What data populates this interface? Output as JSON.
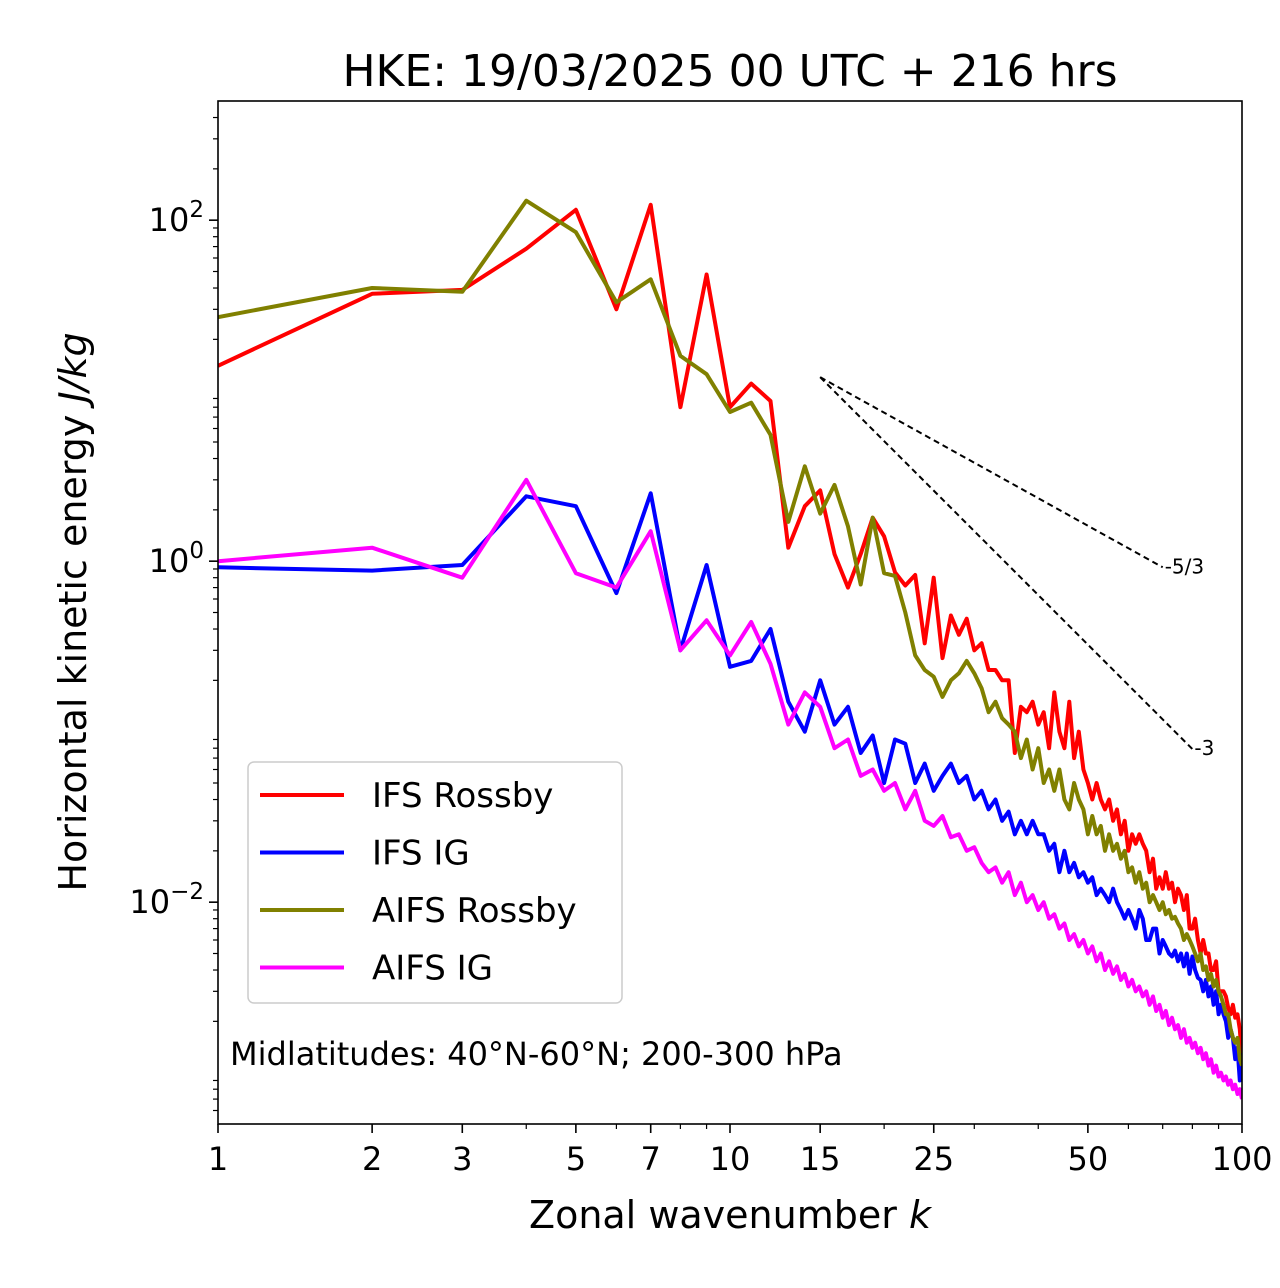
{
  "chart_data": {
    "type": "line",
    "title": "HKE: 19/03/2025 00 UTC + 216 hrs",
    "xlabel": "Zonal wavenumber",
    "xlabel_var": "k",
    "ylabel": "Horizontal kinetic energy",
    "ylabel_unit": "J/kg",
    "x_scale": "log",
    "y_scale": "log",
    "xlim": [
      1,
      100
    ],
    "ylim": [
      0.0005,
      500
    ],
    "x_ticks": [
      1,
      2,
      3,
      5,
      7,
      10,
      15,
      25,
      50,
      100
    ],
    "x_tick_labels": [
      "1",
      "2",
      "3",
      "5",
      "7",
      "10",
      "15",
      "25",
      "50",
      "100"
    ],
    "y_ticks": [
      {
        "value": 100,
        "base": "10",
        "exp": "2"
      },
      {
        "value": 1,
        "base": "10",
        "exp": "0"
      },
      {
        "value": 0.01,
        "base": "10",
        "exp": "−2"
      }
    ],
    "grid": false,
    "legend_position": "lower-left",
    "annotation": "Midlatitudes: 40°N-60°N; 200-300 hPa",
    "reference_slopes": [
      {
        "label": "-5/3",
        "exponent": -1.6667,
        "x_start": 15,
        "x_end": 70,
        "y_start": 12
      },
      {
        "label": "-3",
        "exponent": -3,
        "x_start": 15,
        "x_end": 80,
        "y_start": 12
      }
    ],
    "x": [
      1,
      2,
      3,
      4,
      5,
      6,
      7,
      8,
      9,
      10,
      11,
      12,
      13,
      14,
      15,
      16,
      17,
      18,
      19,
      20,
      21,
      22,
      23,
      24,
      25,
      26,
      27,
      28,
      29,
      30,
      31,
      32,
      33,
      34,
      35,
      36,
      37,
      38,
      39,
      40,
      41,
      42,
      43,
      44,
      45,
      46,
      47,
      48,
      49,
      50,
      51,
      52,
      53,
      54,
      55,
      56,
      57,
      58,
      59,
      60,
      61,
      62,
      63,
      64,
      65,
      66,
      67,
      68,
      69,
      70,
      71,
      72,
      73,
      74,
      75,
      76,
      77,
      78,
      79,
      80,
      81,
      82,
      83,
      84,
      85,
      86,
      87,
      88,
      89,
      90,
      91,
      92,
      93,
      94,
      95,
      96,
      97,
      98,
      99,
      100
    ],
    "series": [
      {
        "name": "IFS Rossby",
        "color": "#ff0000",
        "values": [
          14,
          37,
          39,
          68,
          115,
          30,
          123,
          8,
          48,
          8,
          11,
          8.7,
          1.2,
          2.1,
          2.6,
          1.1,
          0.7,
          1.1,
          1.8,
          1.4,
          0.86,
          0.72,
          0.83,
          0.33,
          0.8,
          0.27,
          0.48,
          0.37,
          0.46,
          0.3,
          0.33,
          0.23,
          0.23,
          0.2,
          0.2,
          0.075,
          0.14,
          0.13,
          0.15,
          0.11,
          0.13,
          0.08,
          0.17,
          0.1,
          0.08,
          0.15,
          0.07,
          0.1,
          0.06,
          0.05,
          0.04,
          0.05,
          0.04,
          0.035,
          0.04,
          0.03,
          0.035,
          0.025,
          0.03,
          0.02,
          0.025,
          0.022,
          0.025,
          0.022,
          0.02,
          0.015,
          0.018,
          0.012,
          0.014,
          0.012,
          0.015,
          0.012,
          0.013,
          0.01,
          0.012,
          0.011,
          0.009,
          0.011,
          0.007,
          0.007,
          0.008,
          0.006,
          0.005,
          0.006,
          0.005,
          0.005,
          0.004,
          0.004,
          0.0045,
          0.003,
          0.003,
          0.003,
          0.0028,
          0.0024,
          0.0022,
          0.0025,
          0.0021,
          0.0022,
          0.0018,
          0.0012
        ]
      },
      {
        "name": "IFS IG",
        "color": "#0000ff",
        "values": [
          0.92,
          0.88,
          0.95,
          2.4,
          2.1,
          0.65,
          2.5,
          0.3,
          0.95,
          0.24,
          0.26,
          0.4,
          0.15,
          0.1,
          0.2,
          0.11,
          0.14,
          0.075,
          0.095,
          0.05,
          0.09,
          0.085,
          0.05,
          0.065,
          0.045,
          0.055,
          0.065,
          0.05,
          0.055,
          0.04,
          0.045,
          0.035,
          0.04,
          0.03,
          0.034,
          0.025,
          0.03,
          0.025,
          0.03,
          0.025,
          0.025,
          0.02,
          0.022,
          0.015,
          0.02,
          0.015,
          0.017,
          0.014,
          0.015,
          0.013,
          0.014,
          0.011,
          0.012,
          0.011,
          0.01,
          0.012,
          0.01,
          0.009,
          0.008,
          0.009,
          0.008,
          0.007,
          0.009,
          0.008,
          0.006,
          0.006,
          0.007,
          0.007,
          0.005,
          0.006,
          0.0055,
          0.005,
          0.0048,
          0.0052,
          0.0045,
          0.005,
          0.0042,
          0.005,
          0.0038,
          0.0048,
          0.004,
          0.0036,
          0.0035,
          0.003,
          0.0035,
          0.0028,
          0.0032,
          0.0025,
          0.003,
          0.0022,
          0.0025,
          0.0022,
          0.002,
          0.0016,
          0.0018,
          0.0016,
          0.0012,
          0.0014,
          0.0009,
          0.0013
        ]
      },
      {
        "name": "AIFS Rossby",
        "color": "#808000",
        "values": [
          27,
          40,
          38,
          130,
          85,
          33,
          45,
          16,
          12.5,
          7.5,
          8.5,
          5.5,
          1.7,
          3.6,
          1.9,
          2.8,
          1.6,
          0.73,
          1.8,
          0.85,
          0.82,
          0.5,
          0.28,
          0.23,
          0.21,
          0.16,
          0.2,
          0.22,
          0.26,
          0.22,
          0.18,
          0.13,
          0.15,
          0.12,
          0.11,
          0.1,
          0.07,
          0.09,
          0.06,
          0.08,
          0.05,
          0.06,
          0.045,
          0.06,
          0.04,
          0.035,
          0.05,
          0.04,
          0.035,
          0.025,
          0.032,
          0.025,
          0.028,
          0.02,
          0.025,
          0.02,
          0.022,
          0.018,
          0.02,
          0.015,
          0.016,
          0.013,
          0.015,
          0.012,
          0.013,
          0.01,
          0.011,
          0.01,
          0.009,
          0.01,
          0.0085,
          0.009,
          0.008,
          0.0082,
          0.0075,
          0.007,
          0.006,
          0.0065,
          0.006,
          0.0055,
          0.005,
          0.0045,
          0.005,
          0.004,
          0.0042,
          0.0035,
          0.0038,
          0.0032,
          0.0035,
          0.003,
          0.0028,
          0.0025,
          0.0022,
          0.0022,
          0.0018,
          0.0016,
          0.0015,
          0.0016,
          0.0012,
          0.0011
        ]
      },
      {
        "name": "AIFS IG",
        "color": "#ff00ff",
        "values": [
          1.0,
          1.2,
          0.8,
          3.0,
          0.85,
          0.7,
          1.5,
          0.3,
          0.45,
          0.28,
          0.44,
          0.25,
          0.11,
          0.17,
          0.14,
          0.08,
          0.09,
          0.055,
          0.06,
          0.045,
          0.05,
          0.035,
          0.045,
          0.03,
          0.028,
          0.032,
          0.024,
          0.025,
          0.02,
          0.021,
          0.017,
          0.015,
          0.016,
          0.013,
          0.015,
          0.011,
          0.013,
          0.01,
          0.011,
          0.009,
          0.01,
          0.008,
          0.0085,
          0.007,
          0.0075,
          0.006,
          0.0065,
          0.0055,
          0.006,
          0.005,
          0.0055,
          0.0045,
          0.005,
          0.004,
          0.0045,
          0.0038,
          0.0042,
          0.0035,
          0.0038,
          0.0032,
          0.0035,
          0.003,
          0.0032,
          0.0028,
          0.003,
          0.0025,
          0.0028,
          0.0023,
          0.0025,
          0.0021,
          0.0023,
          0.0019,
          0.0021,
          0.0018,
          0.0019,
          0.0016,
          0.0018,
          0.0015,
          0.0016,
          0.0014,
          0.0015,
          0.0013,
          0.0014,
          0.0012,
          0.0013,
          0.0011,
          0.0012,
          0.001,
          0.0011,
          0.00095,
          0.001,
          0.0009,
          0.00095,
          0.00085,
          0.0009,
          0.0008,
          0.00085,
          0.00075,
          0.0008,
          0.0007
        ]
      }
    ]
  }
}
